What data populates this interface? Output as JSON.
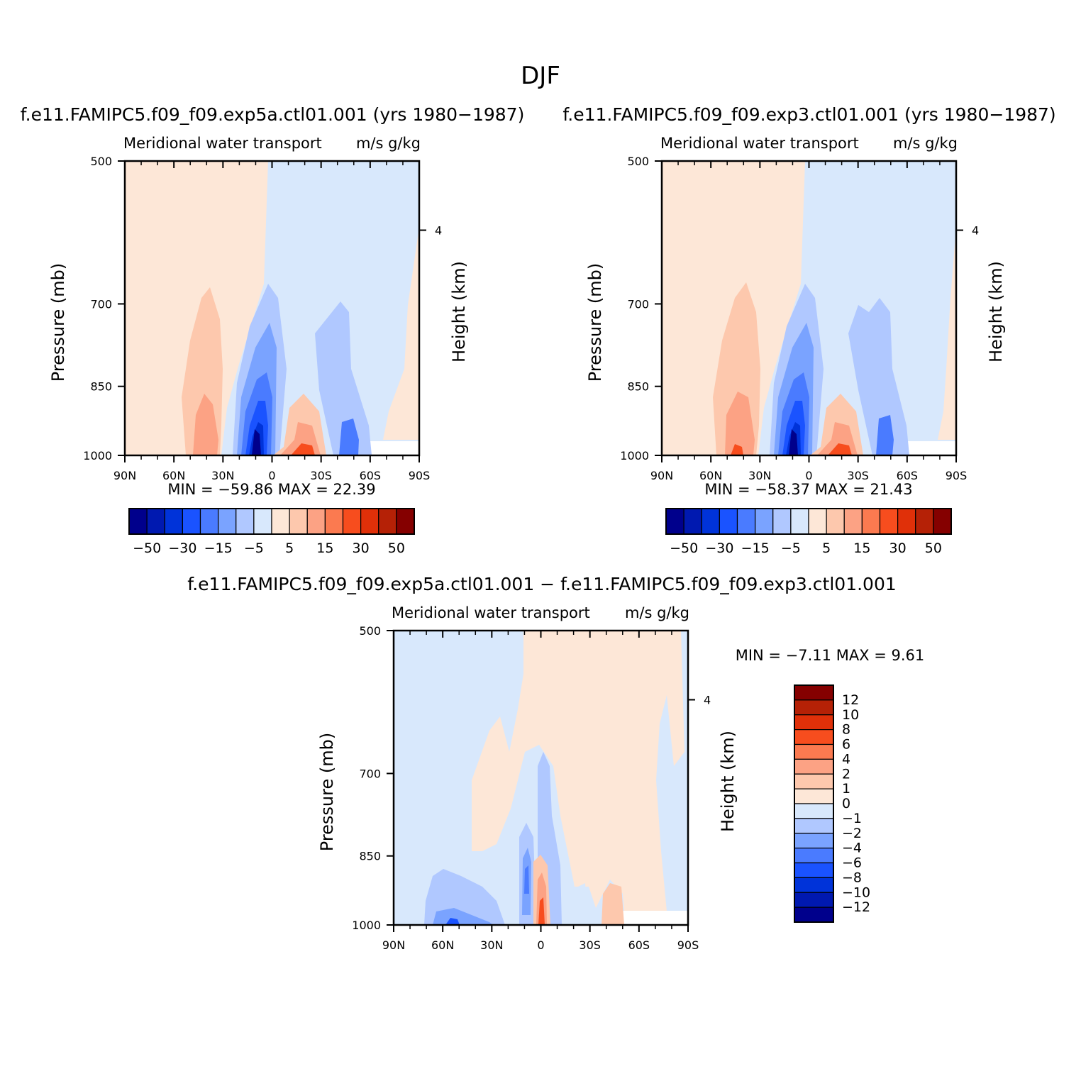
{
  "figure_title": "DJF",
  "panels": [
    {
      "id": "p1",
      "case_title": "f.e11.FAMIPC5.f09_f09.exp5a.ctl01.001 (yrs 1980−1987)",
      "left_title": "Meridional water transport",
      "right_title": "m/s g/kg",
      "min_max": "MIN =  −59.86   MAX =   22.39"
    },
    {
      "id": "p2",
      "case_title": "f.e11.FAMIPC5.f09_f09.exp3.ctl01.001 (yrs 1980−1987)",
      "left_title": "Meridional water transport",
      "right_title": "m/s g/kg",
      "min_max": "MIN =  −58.37   MAX =   21.43"
    },
    {
      "id": "p3",
      "case_title": "f.e11.FAMIPC5.f09_f09.exp5a.ctl01.001 − f.e11.FAMIPC5.f09_f09.exp3.ctl01.001",
      "left_title": "Meridional water transport",
      "right_title": "m/s g/kg",
      "min_max": "MIN =    −7.11   MAX =     9.61"
    }
  ],
  "axes": {
    "ylabel": "Pressure (mb)",
    "y2label": "Height (km)",
    "y2tick": "4",
    "x_ticks": [
      "90N",
      "60N",
      "30N",
      "0",
      "30S",
      "60S",
      "90S"
    ],
    "y_ticks": [
      "500",
      "700",
      "850",
      "1000"
    ]
  },
  "colorbar_abs": {
    "labels": [
      "−50",
      "−30",
      "−15",
      "−5",
      "5",
      "15",
      "30",
      "50"
    ],
    "colors": [
      "#00008c",
      "#0019b0",
      "#0033d9",
      "#1a53ff",
      "#4a7bff",
      "#7aa3ff",
      "#b0c8ff",
      "#d8e8fc",
      "#fde7d7",
      "#fdc8ad",
      "#fca284",
      "#fb7a50",
      "#f74d1e",
      "#e03009",
      "#b52106",
      "#850000"
    ]
  },
  "colorbar_diff": {
    "labels": [
      "12",
      "10",
      "8",
      "6",
      "4",
      "2",
      "1",
      "0",
      "−1",
      "−2",
      "−4",
      "−6",
      "−8",
      "−10",
      "−12"
    ],
    "colors": [
      "#850000",
      "#b52106",
      "#e03009",
      "#f74d1e",
      "#fb7a50",
      "#fca284",
      "#fdc8ad",
      "#fde7d7",
      "#d8e8fc",
      "#b0c8ff",
      "#7aa3ff",
      "#4a7bff",
      "#1a53ff",
      "#0033d9",
      "#0019b0",
      "#00008c"
    ]
  },
  "chart_data": [
    {
      "type": "heatmap",
      "title": "Meridional water transport",
      "units": "m/s g/kg",
      "xlabel": "",
      "ylabel": "Pressure (mb)",
      "y2label": "Height (km)",
      "x": [
        "90N",
        "60N",
        "30N",
        "0",
        "30S",
        "60S",
        "90S"
      ],
      "y": [
        500,
        700,
        850,
        1000
      ],
      "min": -59.86,
      "max": 22.39
    },
    {
      "type": "heatmap",
      "title": "Meridional water transport",
      "units": "m/s g/kg",
      "xlabel": "",
      "ylabel": "Pressure (mb)",
      "y2label": "Height (km)",
      "x": [
        "90N",
        "60N",
        "30N",
        "0",
        "30S",
        "60S",
        "90S"
      ],
      "y": [
        500,
        700,
        850,
        1000
      ],
      "min": -58.37,
      "max": 21.43
    },
    {
      "type": "heatmap",
      "title": "Meridional water transport",
      "units": "m/s g/kg",
      "xlabel": "",
      "ylabel": "Pressure (mb)",
      "y2label": "Height (km)",
      "x": [
        "90N",
        "60N",
        "30N",
        "0",
        "30S",
        "60S",
        "90S"
      ],
      "y": [
        500,
        700,
        850,
        1000
      ],
      "min": -7.11,
      "max": 9.61
    }
  ]
}
